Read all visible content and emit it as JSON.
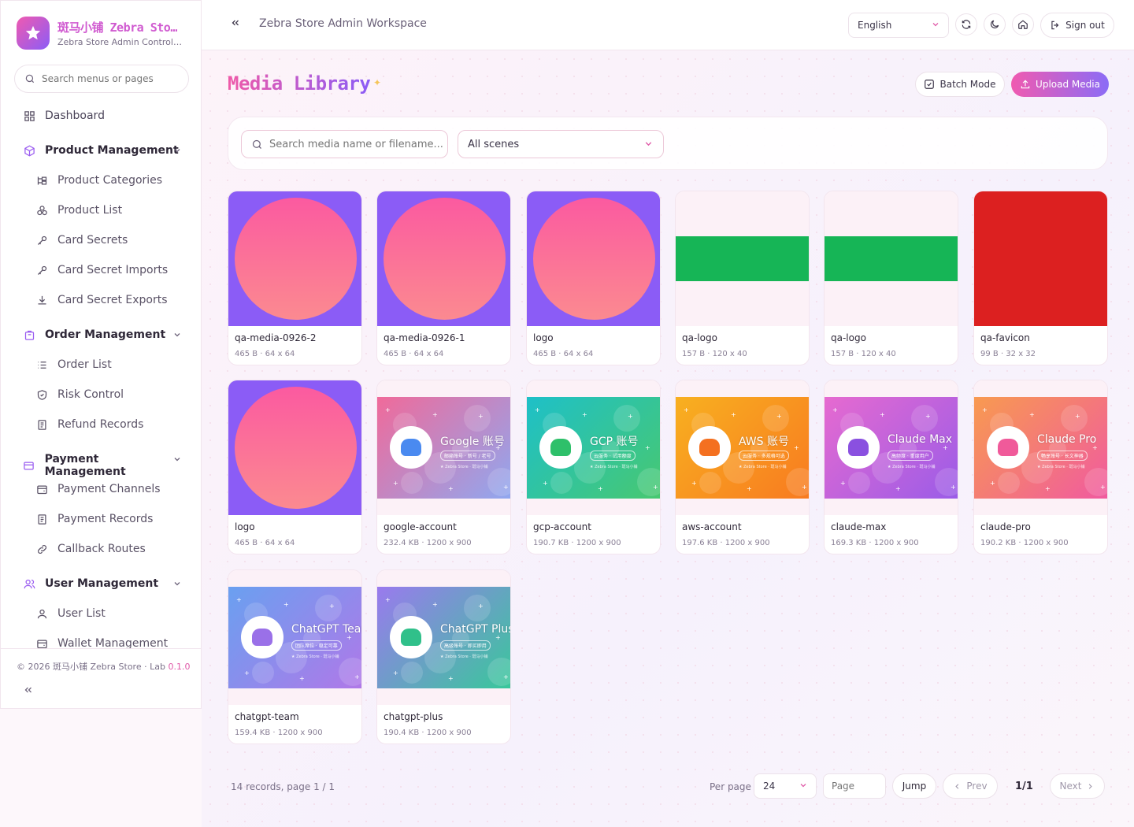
{
  "brand": {
    "title": "斑马小铺 Zebra Store",
    "subtitle": "Zebra Store Admin Control Panel"
  },
  "sidebar": {
    "search_placeholder": "Search menus or pages",
    "items": [
      {
        "label": "Dashboard",
        "icon": "dashboard-icon"
      },
      {
        "label": "Product Management",
        "icon": "box-icon"
      },
      {
        "label": "Product Categories",
        "icon": "tree-icon"
      },
      {
        "label": "Product List",
        "icon": "cubes-icon"
      },
      {
        "label": "Card Secrets",
        "icon": "key-icon"
      },
      {
        "label": "Card Secret Imports",
        "icon": "key-icon"
      },
      {
        "label": "Card Secret Exports",
        "icon": "download-icon"
      },
      {
        "label": "Order Management",
        "icon": "bag-icon"
      },
      {
        "label": "Order List",
        "icon": "list-icon"
      },
      {
        "label": "Risk Control",
        "icon": "shield-icon"
      },
      {
        "label": "Refund Records",
        "icon": "receipt-icon"
      },
      {
        "label": "Payment Management",
        "icon": "card-icon"
      },
      {
        "label": "Payment Channels",
        "icon": "wallet-icon"
      },
      {
        "label": "Payment Records",
        "icon": "receipt-icon"
      },
      {
        "label": "Callback Routes",
        "icon": "link-icon"
      },
      {
        "label": "User Management",
        "icon": "users-icon"
      },
      {
        "label": "User List",
        "icon": "user-icon"
      },
      {
        "label": "Wallet Management",
        "icon": "wallet-icon"
      }
    ],
    "footer": {
      "copyright": "© 2026 斑马小铺 Zebra Store · Lab",
      "version": "0.1.0"
    }
  },
  "topbar": {
    "title": "Zebra Store Admin Workspace",
    "language": "English",
    "sign_out": "Sign out"
  },
  "page": {
    "title": "Media Library",
    "batch_mode": "Batch Mode",
    "upload": "Upload Media"
  },
  "filters": {
    "search_placeholder": "Search media name or filename...",
    "scene": "All scenes"
  },
  "media": [
    {
      "name": "qa-media-0926-2",
      "meta": "465 B · 64 x 64",
      "kind": "circle"
    },
    {
      "name": "qa-media-0926-1",
      "meta": "465 B · 64 x 64",
      "kind": "circle"
    },
    {
      "name": "logo",
      "meta": "465 B · 64 x 64",
      "kind": "circle"
    },
    {
      "name": "qa-logo",
      "meta": "157 B · 120 x 40",
      "kind": "green-bar"
    },
    {
      "name": "qa-logo",
      "meta": "157 B · 120 x 40",
      "kind": "green-bar"
    },
    {
      "name": "qa-favicon",
      "meta": "99 B · 32 x 32",
      "kind": "red"
    },
    {
      "name": "logo",
      "meta": "465 B · 64 x 64",
      "kind": "circle"
    },
    {
      "name": "google-account",
      "meta": "232.4 KB · 1200 x 900",
      "kind": "banner",
      "banner_title": "Google 账号",
      "banner_sub": "邮箱账号 · 新号 / 老号",
      "banner_foot": "★ Zebra Store · 斑马小铺",
      "grad": [
        "#f06a9a",
        "#8fa8f0"
      ],
      "icon_color": "#4a8af0"
    },
    {
      "name": "gcp-account",
      "meta": "190.7 KB · 1200 x 900",
      "kind": "banner",
      "banner_title": "GCP 账号",
      "banner_sub": "云服务 · 试用额度",
      "banner_foot": "★ Zebra Store · 斑马小铺",
      "grad": [
        "#1ec0c8",
        "#48c870"
      ],
      "icon_color": "#2ec06a"
    },
    {
      "name": "aws-account",
      "meta": "197.6 KB · 1200 x 900",
      "kind": "banner",
      "banner_title": "AWS 账号",
      "banner_sub": "云服务 · 多规格可选",
      "banner_foot": "★ Zebra Store · 斑马小铺",
      "grad": [
        "#f8b020",
        "#f87a20"
      ],
      "icon_color": "#f47020"
    },
    {
      "name": "claude-max",
      "meta": "169.3 KB · 1200 x 900",
      "kind": "banner",
      "banner_title": "Claude Max",
      "banner_sub": "高频度 · 重度用户",
      "banner_foot": "★ Zebra Store · 斑马小铺",
      "grad": [
        "#e66ad0",
        "#9a5ce8"
      ],
      "icon_color": "#8a50e0"
    },
    {
      "name": "claude-pro",
      "meta": "190.2 KB · 1200 x 900",
      "kind": "banner",
      "banner_title": "Claude Pro",
      "banner_sub": "畅享账号 · 长文神器",
      "banner_foot": "★ Zebra Store · 斑马小铺",
      "grad": [
        "#f89a50",
        "#f05aa0"
      ],
      "icon_color": "#f05a9a"
    },
    {
      "name": "chatgpt-team",
      "meta": "159.4 KB · 1200 x 900",
      "kind": "banner",
      "banner_title": "ChatGPT Team",
      "banner_sub": "团队席位 · 稳定可靠",
      "banner_foot": "★ Zebra Store · 斑马小铺",
      "grad": [
        "#6aa0f0",
        "#b078e8"
      ],
      "icon_color": "#9a70e8"
    },
    {
      "name": "chatgpt-plus",
      "meta": "190.4 KB · 1200 x 900",
      "kind": "banner",
      "banner_title": "ChatGPT Plus",
      "banner_sub": "高级账号 · 即买即用",
      "banner_foot": "★ Zebra Store · 斑马小铺",
      "grad": [
        "#9a7aee",
        "#38c89a"
      ],
      "icon_color": "#30c08a"
    }
  ],
  "pagination": {
    "summary": "14 records, page 1 / 1",
    "per_page_label": "Per page",
    "per_page": "24",
    "page_placeholder": "Page",
    "jump": "Jump",
    "prev": "Prev",
    "current": "1/1",
    "next": "Next"
  }
}
